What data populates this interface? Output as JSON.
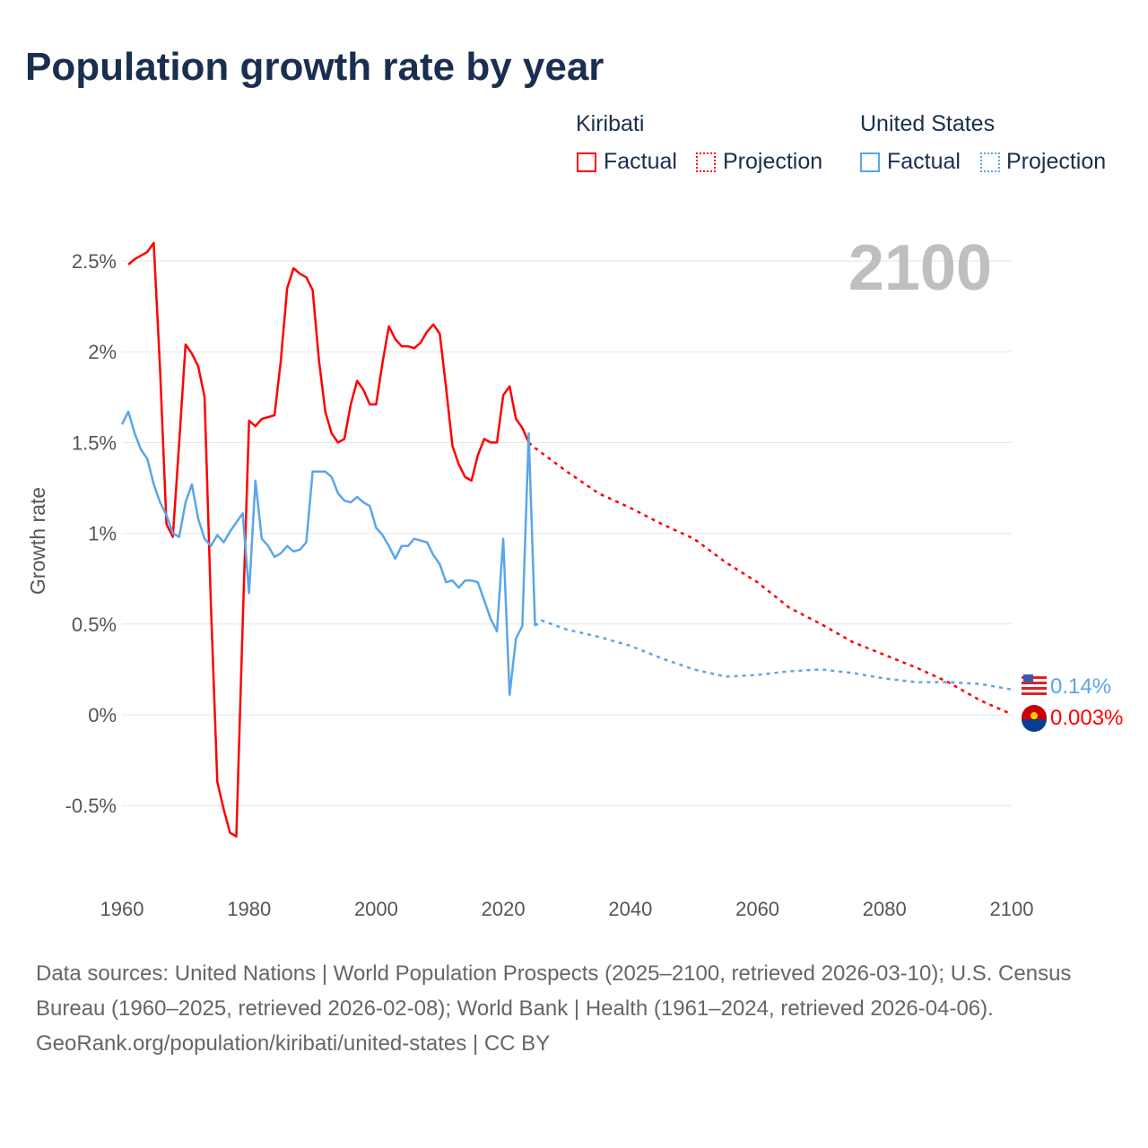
{
  "title": "Population growth rate by year",
  "legend": {
    "kiribati": "Kiribati",
    "us": "United States",
    "factual": "Factual",
    "projection": "Projection"
  },
  "colors": {
    "kiribati": "#ff0000",
    "us": "#5aa5ea",
    "grid": "#e6e6e6",
    "year": "#bfbfbf"
  },
  "chart_data": {
    "type": "line",
    "title": "Population growth rate by year",
    "ylabel": "Growth rate",
    "xlim": [
      1960,
      2100
    ],
    "ylim": [
      -0.75,
      2.6
    ],
    "x_ticks": [
      "1960",
      "1980",
      "2000",
      "2020",
      "2040",
      "2060",
      "2080",
      "2100"
    ],
    "y_ticks": [
      {
        "v": 2.5,
        "label": "2.5%"
      },
      {
        "v": 2,
        "label": "2%"
      },
      {
        "v": 1.5,
        "label": "1.5%"
      },
      {
        "v": 1,
        "label": "1%"
      },
      {
        "v": 0.5,
        "label": "0.5%"
      },
      {
        "v": 0,
        "label": "0%"
      },
      {
        "v": -0.5,
        "label": "-0.5%"
      }
    ],
    "current_year": "2100",
    "series": [
      {
        "name": "Kiribati Factual",
        "color": "#ff0000",
        "dashed": false,
        "x": [
          1961,
          1962,
          1963,
          1964,
          1965,
          1966,
          1967,
          1968,
          1969,
          1970,
          1971,
          1972,
          1973,
          1974,
          1975,
          1976,
          1977,
          1978,
          1979,
          1980,
          1981,
          1982,
          1983,
          1984,
          1985,
          1986,
          1987,
          1988,
          1989,
          1990,
          1991,
          1992,
          1993,
          1994,
          1995,
          1996,
          1997,
          1998,
          1999,
          2000,
          2001,
          2002,
          2003,
          2004,
          2005,
          2006,
          2007,
          2008,
          2009,
          2010,
          2011,
          2012,
          2013,
          2014,
          2015,
          2016,
          2017,
          2018,
          2019,
          2020,
          2021,
          2022,
          2023,
          2024
        ],
        "y": [
          2.48,
          2.51,
          2.53,
          2.55,
          2.6,
          1.9,
          1.05,
          0.98,
          1.5,
          2.04,
          1.99,
          1.92,
          1.75,
          0.6,
          -0.37,
          -0.52,
          -0.65,
          -0.67,
          0.5,
          1.62,
          1.59,
          1.63,
          1.64,
          1.65,
          1.95,
          2.35,
          2.46,
          2.43,
          2.41,
          2.34,
          1.95,
          1.67,
          1.55,
          1.5,
          1.52,
          1.71,
          1.84,
          1.79,
          1.71,
          1.71,
          1.94,
          2.14,
          2.07,
          2.03,
          2.03,
          2.02,
          2.05,
          2.11,
          2.15,
          2.1,
          1.8,
          1.48,
          1.38,
          1.31,
          1.29,
          1.43,
          1.52,
          1.5,
          1.5,
          1.76,
          1.81,
          1.63,
          1.58,
          1.5
        ]
      },
      {
        "name": "Kiribati Projection",
        "color": "#ff0000",
        "dashed": true,
        "x": [
          2024,
          2025,
          2030,
          2035,
          2040,
          2045,
          2050,
          2055,
          2060,
          2065,
          2070,
          2075,
          2080,
          2085,
          2090,
          2095,
          2100
        ],
        "y": [
          1.5,
          1.47,
          1.34,
          1.22,
          1.14,
          1.05,
          0.97,
          0.84,
          0.73,
          0.59,
          0.5,
          0.4,
          0.33,
          0.26,
          0.18,
          0.08,
          0.003
        ]
      },
      {
        "name": "United States Factual",
        "color": "#5aa5ea",
        "dashed": false,
        "x": [
          1960,
          1961,
          1962,
          1963,
          1964,
          1965,
          1966,
          1967,
          1968,
          1969,
          1970,
          1971,
          1972,
          1973,
          1974,
          1975,
          1976,
          1977,
          1978,
          1979,
          1980,
          1981,
          1982,
          1983,
          1984,
          1985,
          1986,
          1987,
          1988,
          1989,
          1990,
          1991,
          1992,
          1993,
          1994,
          1995,
          1996,
          1997,
          1998,
          1999,
          2000,
          2001,
          2002,
          2003,
          2004,
          2005,
          2006,
          2007,
          2008,
          2009,
          2010,
          2011,
          2012,
          2013,
          2014,
          2015,
          2016,
          2017,
          2018,
          2019,
          2020,
          2021,
          2022,
          2023,
          2024,
          2025
        ],
        "y": [
          1.6,
          1.67,
          1.55,
          1.46,
          1.41,
          1.27,
          1.17,
          1.1,
          1.0,
          0.98,
          1.17,
          1.27,
          1.08,
          0.97,
          0.93,
          0.99,
          0.95,
          1.01,
          1.06,
          1.11,
          0.67,
          1.29,
          0.97,
          0.93,
          0.87,
          0.89,
          0.93,
          0.9,
          0.91,
          0.95,
          1.34,
          1.34,
          1.34,
          1.31,
          1.22,
          1.18,
          1.17,
          1.2,
          1.17,
          1.15,
          1.03,
          0.99,
          0.93,
          0.86,
          0.93,
          0.93,
          0.97,
          0.96,
          0.95,
          0.88,
          0.83,
          0.73,
          0.74,
          0.7,
          0.74,
          0.74,
          0.73,
          0.63,
          0.53,
          0.46,
          0.97,
          0.11,
          0.42,
          0.49,
          1.55,
          0.49
        ]
      },
      {
        "name": "United States Projection",
        "color": "#5aa5ea",
        "dashed": true,
        "x": [
          2025,
          2026,
          2030,
          2035,
          2040,
          2045,
          2050,
          2055,
          2060,
          2065,
          2070,
          2075,
          2080,
          2085,
          2090,
          2095,
          2100
        ],
        "y": [
          0.49,
          0.52,
          0.47,
          0.43,
          0.38,
          0.31,
          0.25,
          0.21,
          0.22,
          0.24,
          0.25,
          0.23,
          0.2,
          0.18,
          0.18,
          0.17,
          0.14
        ]
      }
    ],
    "end_labels": [
      {
        "country": "United States",
        "value": 0.14,
        "label": "0.14%",
        "color": "#5aa5ea"
      },
      {
        "country": "Kiribati",
        "value": 0.003,
        "label": "0.003%",
        "color": "#ff0000"
      }
    ]
  },
  "footer": {
    "sources": "Data sources: United Nations | World Population Prospects (2025–2100, retrieved 2026-03-10); U.S. Census Bureau (1960–2025, retrieved 2026-02-08); World Bank | Health (1961–2024, retrieved 2026-04-06).",
    "link": "GeoRank.org/population/kiribati/united-states | CC BY"
  }
}
